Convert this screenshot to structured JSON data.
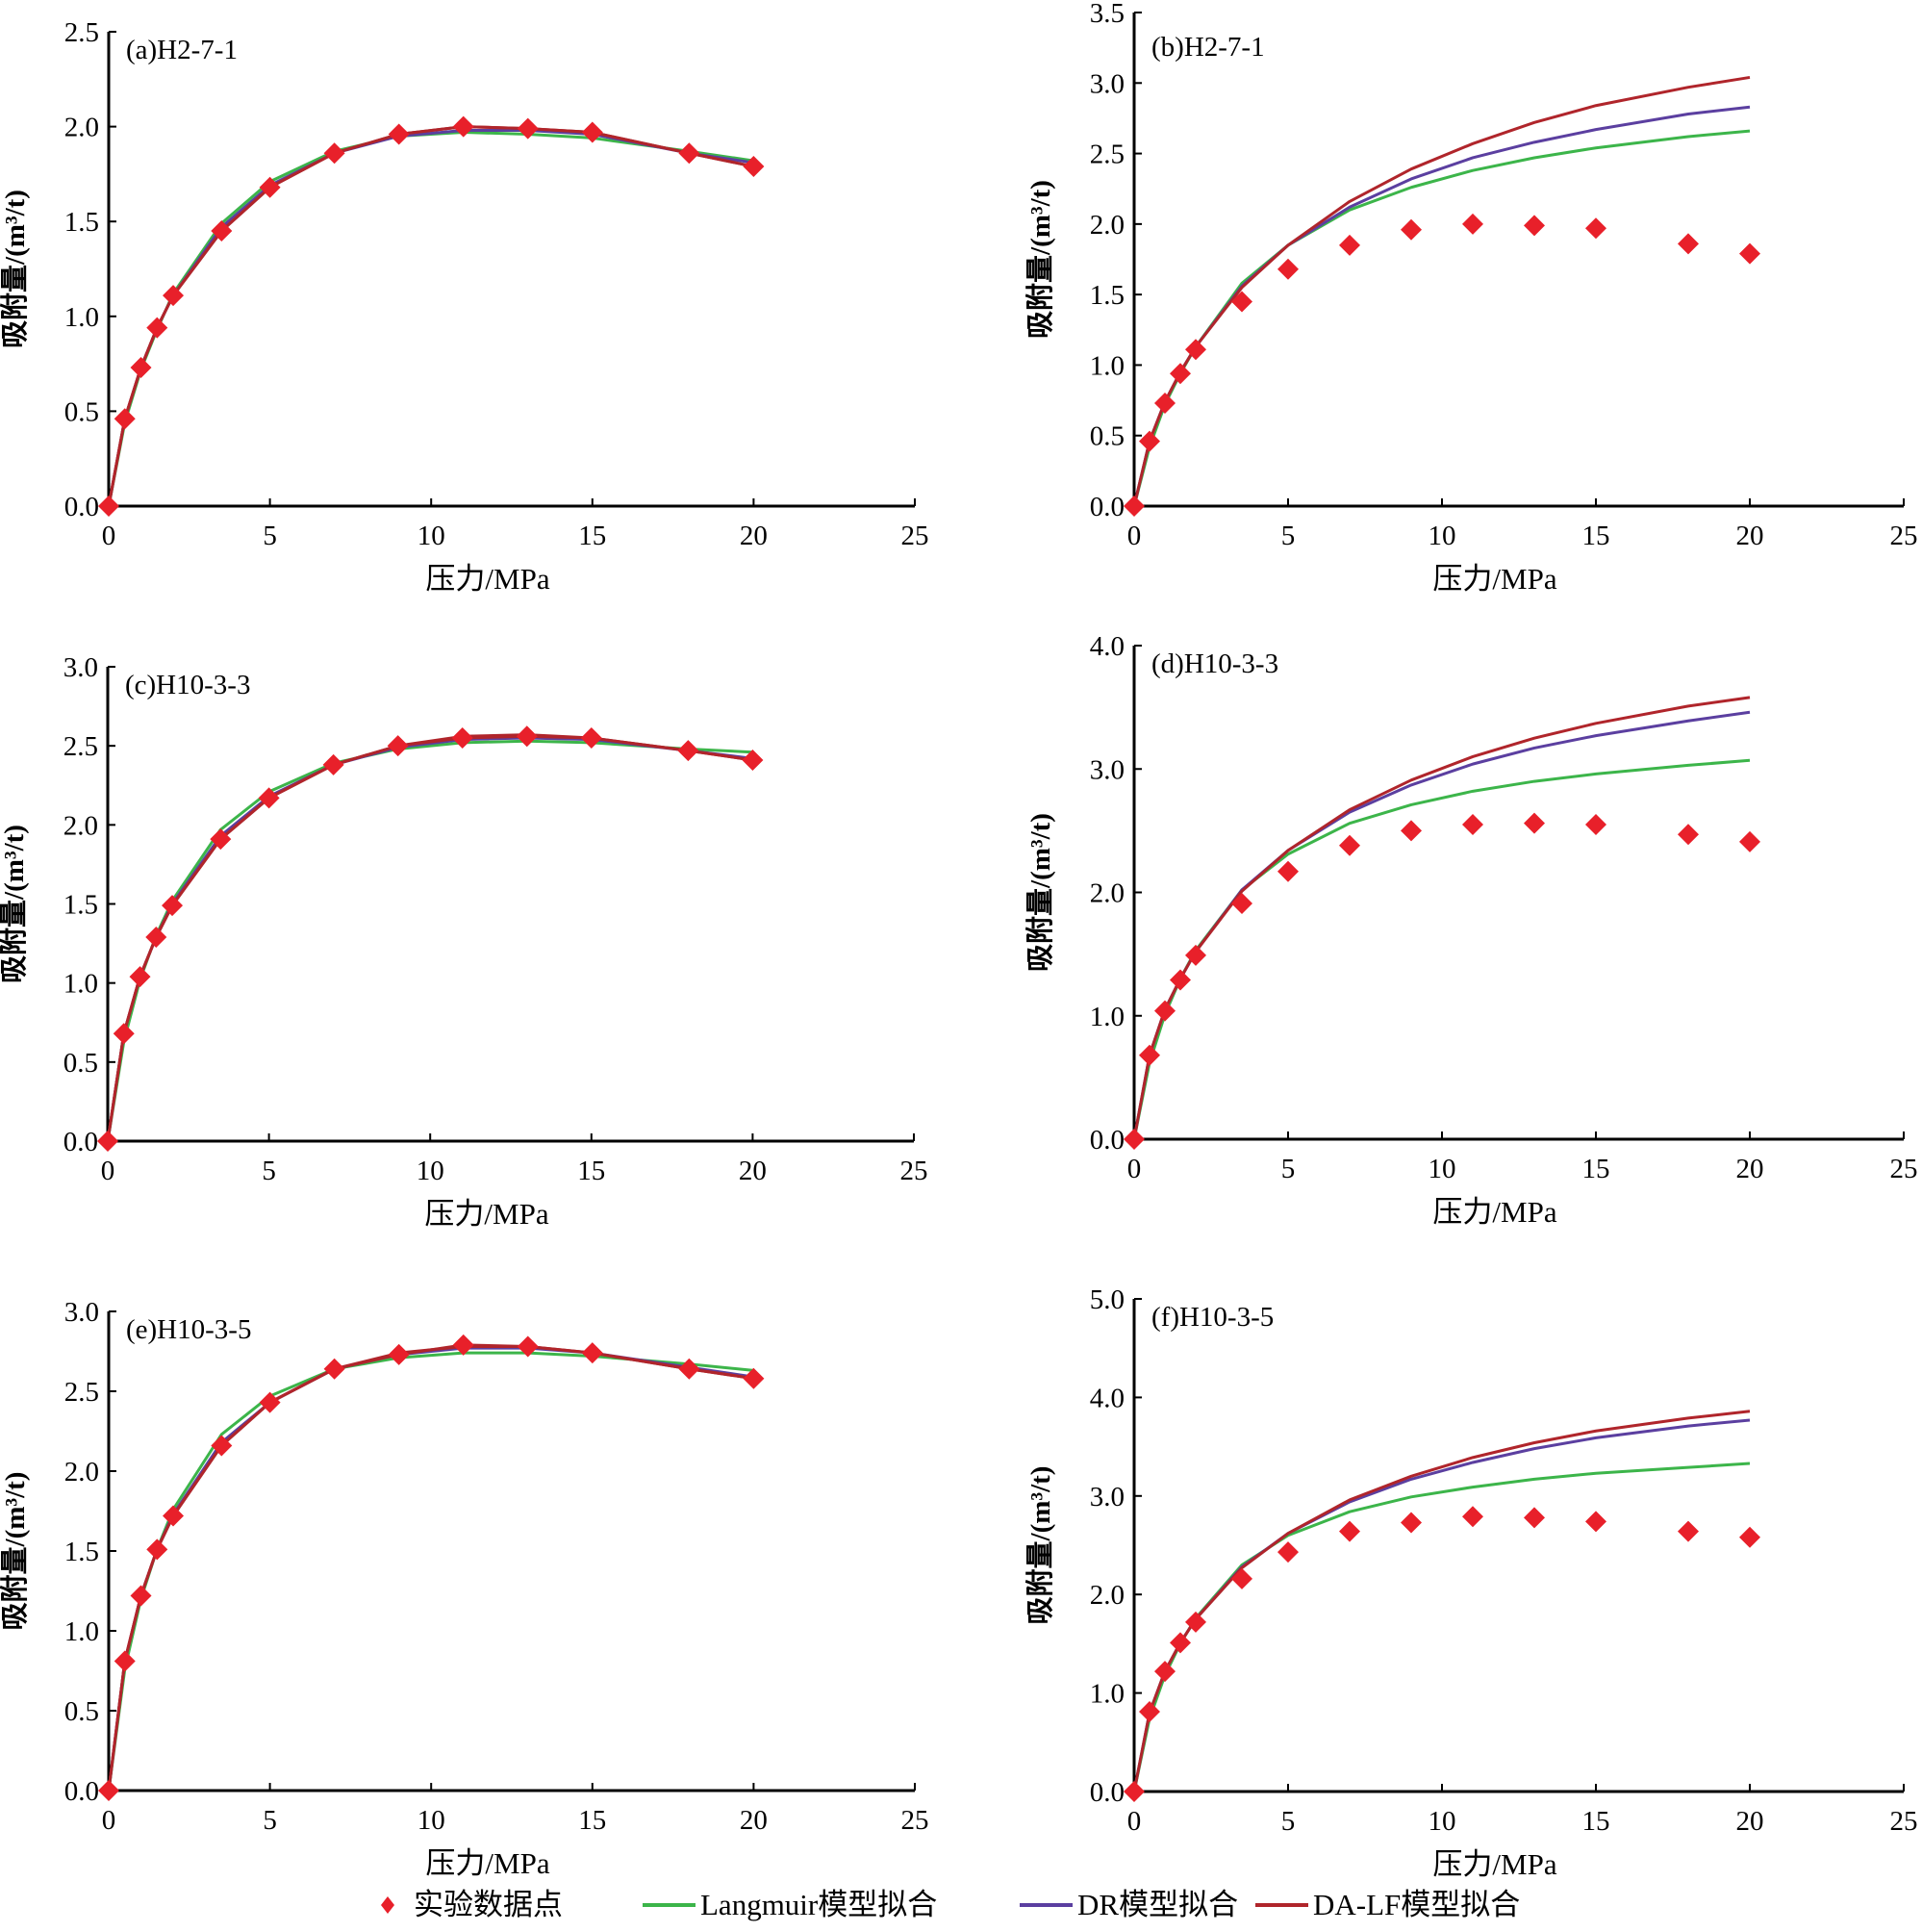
{
  "figure": {
    "legend": [
      {
        "key": "experiment",
        "label": "实验数据点",
        "color": "#e8202a",
        "marker": "diamond"
      },
      {
        "key": "langmuir",
        "label": "Langmuir模型拟合",
        "color": "#3cb54a",
        "marker": "line"
      },
      {
        "key": "dr",
        "label": "DR模型拟合",
        "color": "#5b3fa0",
        "marker": "line"
      },
      {
        "key": "dalf",
        "label": "DA-LF模型拟合",
        "color": "#b0252b",
        "marker": "line"
      }
    ]
  },
  "chart_data": [
    {
      "type": "line",
      "title": "(a)H2-7-1",
      "xlabel": "压力/MPa",
      "ylabel": "吸附量/(m³/t)",
      "xlim": [
        0,
        25
      ],
      "xticks": [
        0,
        5,
        10,
        15,
        20,
        25
      ],
      "ylim": [
        0,
        2.5
      ],
      "yticks": [
        "0.0",
        "0.5",
        "1.0",
        "1.5",
        "2.0",
        "2.5"
      ],
      "grid": false,
      "x": [
        0,
        0.5,
        1,
        1.5,
        2,
        3.5,
        5,
        7,
        9,
        11,
        13,
        15,
        18,
        20
      ],
      "series": [
        {
          "name": "实验数据点",
          "key": "experiment",
          "values": [
            0,
            0.46,
            0.73,
            0.94,
            1.11,
            1.45,
            1.68,
            1.86,
            1.96,
            2.0,
            1.99,
            1.97,
            1.86,
            1.79
          ]
        },
        {
          "name": "Langmuir模型拟合",
          "key": "langmuir",
          "values": [
            0,
            0.44,
            0.72,
            0.93,
            1.12,
            1.49,
            1.71,
            1.87,
            1.95,
            1.97,
            1.96,
            1.94,
            1.87,
            1.82
          ]
        },
        {
          "name": "DR模型拟合",
          "key": "dr",
          "values": [
            0,
            0.46,
            0.73,
            0.94,
            1.11,
            1.47,
            1.69,
            1.86,
            1.95,
            1.98,
            1.98,
            1.96,
            1.86,
            1.81
          ]
        },
        {
          "name": "DA-LF模型拟合",
          "key": "dalf",
          "values": [
            0,
            0.46,
            0.73,
            0.94,
            1.11,
            1.45,
            1.68,
            1.86,
            1.96,
            2.0,
            1.99,
            1.97,
            1.86,
            1.79
          ]
        }
      ]
    },
    {
      "type": "line",
      "title": "(b)H2-7-1",
      "xlabel": "压力/MPa",
      "ylabel": "吸附量/(m³/t)",
      "xlim": [
        0,
        25
      ],
      "xticks": [
        0,
        5,
        10,
        15,
        20,
        25
      ],
      "ylim": [
        0,
        3.5
      ],
      "yticks": [
        "0.0",
        "0.5",
        "1.0",
        "1.5",
        "2.0",
        "2.5",
        "3.0",
        "3.5"
      ],
      "grid": false,
      "x": [
        0,
        0.5,
        1,
        1.5,
        2,
        3.5,
        5,
        7,
        9,
        11,
        13,
        15,
        18,
        20
      ],
      "series": [
        {
          "name": "实验数据点",
          "key": "experiment",
          "values": [
            0,
            0.46,
            0.73,
            0.94,
            1.11,
            1.45,
            1.68,
            1.85,
            1.96,
            2.0,
            1.99,
            1.97,
            1.86,
            1.79
          ]
        },
        {
          "name": "Langmuir模型拟合",
          "key": "langmuir",
          "values": [
            0,
            0.42,
            0.72,
            0.94,
            1.13,
            1.58,
            1.85,
            2.1,
            2.26,
            2.38,
            2.47,
            2.54,
            2.62,
            2.66
          ]
        },
        {
          "name": "DR模型拟合",
          "key": "dr",
          "values": [
            0,
            0.46,
            0.74,
            0.95,
            1.13,
            1.56,
            1.85,
            2.12,
            2.32,
            2.47,
            2.58,
            2.67,
            2.78,
            2.83
          ]
        },
        {
          "name": "DA-LF模型拟合",
          "key": "dalf",
          "values": [
            0,
            0.46,
            0.74,
            0.95,
            1.13,
            1.55,
            1.85,
            2.16,
            2.39,
            2.57,
            2.72,
            2.84,
            2.97,
            3.04
          ]
        }
      ]
    },
    {
      "type": "line",
      "title": "(c)H10-3-3",
      "xlabel": "压力/MPa",
      "ylabel": "吸附量/(m³/t)",
      "xlim": [
        0,
        25
      ],
      "xticks": [
        0,
        5,
        10,
        15,
        20,
        25
      ],
      "ylim": [
        0,
        3.0
      ],
      "yticks": [
        "0.0",
        "0.5",
        "1.0",
        "1.5",
        "2.0",
        "2.5",
        "3.0"
      ],
      "grid": false,
      "x": [
        0,
        0.5,
        1,
        1.5,
        2,
        3.5,
        5,
        7,
        9,
        11,
        13,
        15,
        18,
        20
      ],
      "series": [
        {
          "name": "实验数据点",
          "key": "experiment",
          "values": [
            0,
            0.68,
            1.04,
            1.29,
            1.49,
            1.91,
            2.17,
            2.38,
            2.5,
            2.55,
            2.56,
            2.55,
            2.47,
            2.41
          ]
        },
        {
          "name": "Langmuir模型拟合",
          "key": "langmuir",
          "values": [
            0,
            0.63,
            1.02,
            1.3,
            1.52,
            1.97,
            2.21,
            2.39,
            2.48,
            2.52,
            2.53,
            2.52,
            2.48,
            2.46
          ]
        },
        {
          "name": "DR模型拟合",
          "key": "dr",
          "values": [
            0,
            0.68,
            1.04,
            1.29,
            1.5,
            1.93,
            2.18,
            2.38,
            2.49,
            2.54,
            2.55,
            2.54,
            2.47,
            2.42
          ]
        },
        {
          "name": "DA-LF模型拟合",
          "key": "dalf",
          "values": [
            0,
            0.68,
            1.04,
            1.29,
            1.49,
            1.91,
            2.17,
            2.38,
            2.5,
            2.56,
            2.57,
            2.55,
            2.47,
            2.41
          ]
        }
      ]
    },
    {
      "type": "line",
      "title": "(d)H10-3-3",
      "xlabel": "压力/MPa",
      "ylabel": "吸附量/(m³/t)",
      "xlim": [
        0,
        25
      ],
      "xticks": [
        0,
        5,
        10,
        15,
        20,
        25
      ],
      "ylim": [
        0,
        4.0
      ],
      "yticks": [
        "0.0",
        "1.0",
        "2.0",
        "3.0",
        "4.0"
      ],
      "grid": false,
      "x": [
        0,
        0.5,
        1,
        1.5,
        2,
        3.5,
        5,
        7,
        9,
        11,
        13,
        15,
        18,
        20
      ],
      "series": [
        {
          "name": "实验数据点",
          "key": "experiment",
          "values": [
            0,
            0.68,
            1.04,
            1.29,
            1.49,
            1.91,
            2.17,
            2.38,
            2.5,
            2.55,
            2.56,
            2.55,
            2.47,
            2.41
          ]
        },
        {
          "name": "Langmuir模型拟合",
          "key": "langmuir",
          "values": [
            0,
            0.62,
            1.01,
            1.3,
            1.53,
            2.02,
            2.31,
            2.56,
            2.71,
            2.82,
            2.9,
            2.96,
            3.03,
            3.07
          ]
        },
        {
          "name": "DR模型拟合",
          "key": "dr",
          "values": [
            0,
            0.68,
            1.05,
            1.3,
            1.52,
            2.02,
            2.34,
            2.65,
            2.87,
            3.04,
            3.17,
            3.27,
            3.39,
            3.46
          ]
        },
        {
          "name": "DA-LF模型拟合",
          "key": "dalf",
          "values": [
            0,
            0.68,
            1.05,
            1.3,
            1.52,
            2.01,
            2.34,
            2.67,
            2.91,
            3.1,
            3.25,
            3.37,
            3.51,
            3.58
          ]
        }
      ]
    },
    {
      "type": "line",
      "title": "(e)H10-3-5",
      "xlabel": "压力/MPa",
      "ylabel": "吸附量/(m³/t)",
      "xlim": [
        0,
        25
      ],
      "xticks": [
        0,
        5,
        10,
        15,
        20,
        25
      ],
      "ylim": [
        0,
        3.0
      ],
      "yticks": [
        "0.0",
        "0.5",
        "1.0",
        "1.5",
        "2.0",
        "2.5",
        "3.0"
      ],
      "grid": false,
      "x": [
        0,
        0.5,
        1,
        1.5,
        2,
        3.5,
        5,
        7,
        9,
        11,
        13,
        15,
        18,
        20
      ],
      "series": [
        {
          "name": "实验数据点",
          "key": "experiment",
          "values": [
            0,
            0.81,
            1.22,
            1.51,
            1.72,
            2.16,
            2.43,
            2.64,
            2.73,
            2.79,
            2.78,
            2.74,
            2.64,
            2.58
          ]
        },
        {
          "name": "Langmuir模型拟合",
          "key": "langmuir",
          "values": [
            0,
            0.76,
            1.2,
            1.51,
            1.76,
            2.23,
            2.47,
            2.64,
            2.71,
            2.74,
            2.74,
            2.72,
            2.67,
            2.63
          ]
        },
        {
          "name": "DR模型拟合",
          "key": "dr",
          "values": [
            0,
            0.81,
            1.22,
            1.51,
            1.73,
            2.18,
            2.43,
            2.64,
            2.73,
            2.77,
            2.77,
            2.74,
            2.65,
            2.59
          ]
        },
        {
          "name": "DA-LF模型拟合",
          "key": "dalf",
          "values": [
            0,
            0.81,
            1.22,
            1.51,
            1.72,
            2.16,
            2.43,
            2.64,
            2.74,
            2.78,
            2.78,
            2.74,
            2.64,
            2.58
          ]
        }
      ]
    },
    {
      "type": "line",
      "title": "(f)H10-3-5",
      "xlabel": "压力/MPa",
      "ylabel": "吸附量/(m³/t)",
      "xlim": [
        0,
        25
      ],
      "xticks": [
        0,
        5,
        10,
        15,
        20,
        25
      ],
      "ylim": [
        0,
        5.0
      ],
      "yticks": [
        "0.0",
        "1.0",
        "2.0",
        "3.0",
        "4.0",
        "5.0"
      ],
      "grid": false,
      "x": [
        0,
        0.5,
        1,
        1.5,
        2,
        3.5,
        5,
        7,
        9,
        11,
        13,
        15,
        18,
        20
      ],
      "series": [
        {
          "name": "实验数据点",
          "key": "experiment",
          "values": [
            0,
            0.81,
            1.22,
            1.51,
            1.72,
            2.16,
            2.43,
            2.64,
            2.73,
            2.79,
            2.78,
            2.74,
            2.64,
            2.58
          ]
        },
        {
          "name": "Langmuir模型拟合",
          "key": "langmuir",
          "values": [
            0,
            0.74,
            1.18,
            1.5,
            1.76,
            2.3,
            2.6,
            2.84,
            2.99,
            3.09,
            3.17,
            3.23,
            3.29,
            3.33
          ]
        },
        {
          "name": "DR模型拟合",
          "key": "dr",
          "values": [
            0,
            0.8,
            1.22,
            1.51,
            1.75,
            2.28,
            2.62,
            2.94,
            3.17,
            3.34,
            3.48,
            3.59,
            3.71,
            3.77
          ]
        },
        {
          "name": "DA-LF模型拟合",
          "key": "dalf",
          "values": [
            0,
            0.8,
            1.22,
            1.51,
            1.75,
            2.27,
            2.62,
            2.96,
            3.2,
            3.39,
            3.54,
            3.66,
            3.79,
            3.86
          ]
        }
      ]
    }
  ]
}
